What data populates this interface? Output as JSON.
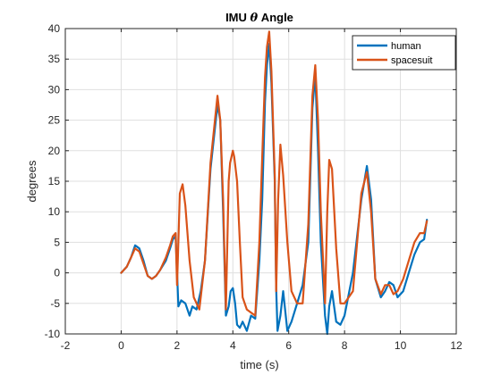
{
  "chart_data": {
    "type": "line",
    "title": "IMU θ Angle",
    "title_prefix": "IMU ",
    "title_symbol": "θ",
    "title_suffix": " Angle",
    "xlabel": "time (s)",
    "ylabel": "degrees",
    "xlim": [
      -2,
      12
    ],
    "ylim": [
      -10,
      40
    ],
    "xticks": [
      -2,
      0,
      2,
      4,
      6,
      8,
      10,
      12
    ],
    "yticks": [
      -10,
      -5,
      0,
      5,
      10,
      15,
      20,
      25,
      30,
      35,
      40
    ],
    "grid": true,
    "legend_position": "top-right",
    "series": [
      {
        "name": "human",
        "color": "#0072BD",
        "x": [
          0,
          0.2,
          0.35,
          0.5,
          0.65,
          0.8,
          0.95,
          1.1,
          1.25,
          1.4,
          1.6,
          1.75,
          1.85,
          1.95,
          2.05,
          2.15,
          2.3,
          2.45,
          2.55,
          2.7,
          2.85,
          3.0,
          3.2,
          3.45,
          3.55,
          3.65,
          3.75,
          3.85,
          3.92,
          4.0,
          4.08,
          4.15,
          4.25,
          4.35,
          4.5,
          4.65,
          4.8,
          4.95,
          5.05,
          5.15,
          5.22,
          5.3,
          5.38,
          5.5,
          5.55,
          5.6,
          5.7,
          5.8,
          5.95,
          6.1,
          6.3,
          6.5,
          6.7,
          6.85,
          6.95,
          7.05,
          7.15,
          7.3,
          7.38,
          7.45,
          7.55,
          7.7,
          7.85,
          8.0,
          8.3,
          8.6,
          8.8,
          8.95,
          9.1,
          9.3,
          9.45,
          9.6,
          9.75,
          9.9,
          10.1,
          10.3,
          10.5,
          10.7,
          10.85,
          10.95
        ],
        "values": [
          0,
          1,
          2.5,
          4.5,
          4,
          2,
          -0.5,
          -1,
          -0.5,
          0.5,
          2,
          4,
          5.5,
          6,
          -5.5,
          -4.5,
          -5,
          -7,
          -5.5,
          -6,
          -3,
          2,
          17,
          27.5,
          25,
          10,
          -7,
          -5.5,
          -3,
          -2.5,
          -5,
          -8.5,
          -9,
          -8,
          -9.5,
          -7,
          -7.5,
          2,
          12,
          28,
          34,
          37.5,
          31,
          15,
          -2.5,
          -9.5,
          -7,
          -3,
          -9.5,
          -8,
          -5,
          -2,
          5,
          27,
          32.5,
          20,
          5,
          -7,
          -10,
          -5.5,
          -3,
          -8,
          -8.5,
          -7,
          0,
          12,
          17.5,
          12,
          -1,
          -4,
          -3,
          -1.5,
          -2,
          -4,
          -3,
          0,
          3,
          5,
          5.5,
          8.7
        ]
      },
      {
        "name": "spacesuit",
        "color": "#D95319",
        "x": [
          0,
          0.2,
          0.35,
          0.5,
          0.65,
          0.8,
          0.95,
          1.1,
          1.25,
          1.4,
          1.6,
          1.75,
          1.85,
          1.95,
          2.0,
          2.1,
          2.2,
          2.3,
          2.45,
          2.6,
          2.8,
          3.0,
          3.2,
          3.45,
          3.55,
          3.65,
          3.75,
          3.85,
          3.9,
          4.0,
          4.05,
          4.15,
          4.25,
          4.35,
          4.5,
          4.65,
          4.8,
          4.95,
          5.05,
          5.15,
          5.22,
          5.3,
          5.38,
          5.5,
          5.55,
          5.62,
          5.7,
          5.8,
          5.95,
          6.1,
          6.3,
          6.5,
          6.7,
          6.85,
          6.95,
          7.05,
          7.15,
          7.3,
          7.38,
          7.45,
          7.55,
          7.7,
          7.85,
          8.0,
          8.3,
          8.6,
          8.8,
          8.95,
          9.1,
          9.3,
          9.45,
          9.6,
          9.75,
          9.9,
          10.1,
          10.3,
          10.5,
          10.7,
          10.85,
          10.95
        ],
        "values": [
          0,
          1,
          2.5,
          4,
          3.5,
          1.5,
          -0.5,
          -1,
          -0.5,
          0.5,
          2.5,
          4.5,
          6,
          6.5,
          -2,
          13,
          14.5,
          11,
          2,
          -4,
          -6,
          2,
          18,
          29,
          25,
          12,
          -6,
          15,
          18,
          20,
          19,
          15,
          5,
          -4,
          -6,
          -6.5,
          -7,
          5,
          19,
          32,
          37,
          39.5,
          33,
          16,
          -3,
          12,
          21,
          16,
          5,
          -3,
          -5,
          -5,
          8,
          29,
          34,
          25,
          10,
          -5,
          10,
          18.5,
          17,
          4,
          -5,
          -5,
          -3,
          13,
          16.5,
          10,
          -1,
          -3.5,
          -2,
          -2,
          -3.5,
          -3,
          -1,
          2,
          5,
          6.5,
          6.5,
          8.5
        ]
      }
    ]
  }
}
